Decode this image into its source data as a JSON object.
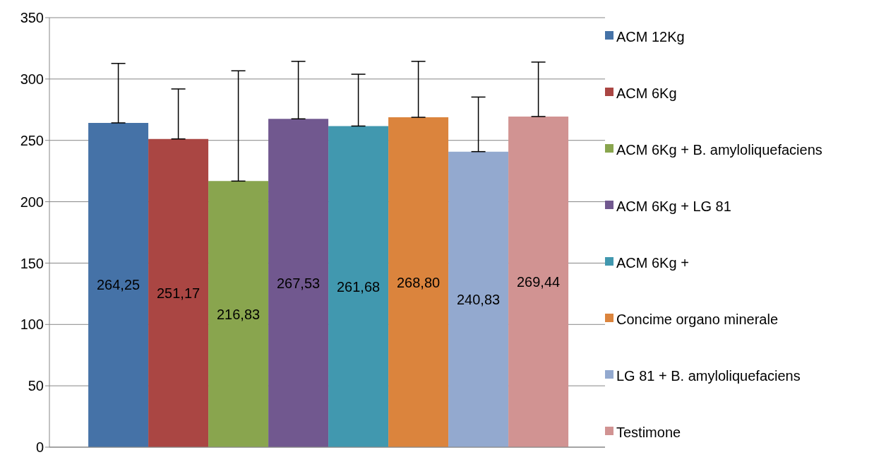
{
  "chart_data": {
    "type": "bar",
    "categories": [
      null
    ],
    "ylim": [
      0,
      350
    ],
    "yticks": [
      0,
      50,
      100,
      150,
      200,
      250,
      300,
      350
    ],
    "grid": "y",
    "legend": "right",
    "series": [
      {
        "name": "ACM 12Kg",
        "color": "#4572a7",
        "values": [
          264.25
        ],
        "value_labels": [
          "264,25"
        ],
        "errors": [
          [
            264.25,
            312.7
          ]
        ]
      },
      {
        "name": "ACM 6Kg",
        "color": "#aa4643",
        "values": [
          251.17
        ],
        "value_labels": [
          "251,17"
        ],
        "errors": [
          [
            251.17,
            291.9
          ]
        ]
      },
      {
        "name": "ACM 6Kg + B. amyloliquefaciens",
        "color": "#89a54e",
        "values": [
          216.83
        ],
        "value_labels": [
          "216,83"
        ],
        "errors": [
          [
            216.83,
            306.7
          ]
        ]
      },
      {
        "name": "ACM 6Kg + LG 81",
        "color": "#71588f",
        "values": [
          267.53
        ],
        "value_labels": [
          "267,53"
        ],
        "errors": [
          [
            267.53,
            314.4
          ]
        ]
      },
      {
        "name": "ACM 6Kg +",
        "color": "#4198af",
        "values": [
          261.68
        ],
        "value_labels": [
          "261,68"
        ],
        "errors": [
          [
            261.68,
            303.9
          ]
        ]
      },
      {
        "name": "Concime organo minerale",
        "color": "#db843d",
        "values": [
          268.8
        ],
        "value_labels": [
          "268,80"
        ],
        "errors": [
          [
            268.8,
            314.4
          ]
        ]
      },
      {
        "name": "LG 81 + B. amyloliquefaciens",
        "color": "#93a9cf",
        "values": [
          240.83
        ],
        "value_labels": [
          "240,83"
        ],
        "errors": [
          [
            240.83,
            285.3
          ]
        ]
      },
      {
        "name": "Testimone",
        "color": "#d19392",
        "values": [
          269.44
        ],
        "value_labels": [
          "269,44"
        ],
        "errors": [
          [
            269.44,
            313.8
          ]
        ]
      }
    ]
  }
}
